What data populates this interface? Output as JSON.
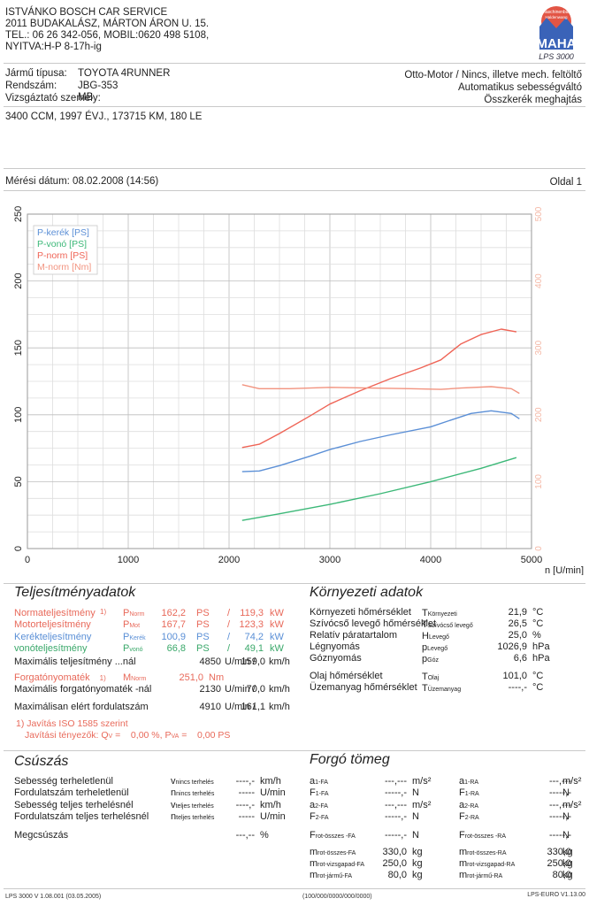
{
  "header": {
    "line1": "ISTVÁNKO BOSCH CAR SERVICE",
    "line2": "2011 BUDAKALÁSZ, MÁRTON ÁRON U. 15.",
    "line3": "TEL.: 06 26 342-056, MOBIL:0620 498 5108,",
    "line4": "NYITVA:H-P 8-17h-ig"
  },
  "logo": {
    "badge_top": "Maschinenbau",
    "badge_bottom": "Haldenwang",
    "brand": "MAHA",
    "model": "LPS 3000"
  },
  "vehicle": {
    "type_label": "Jármű típusa:",
    "type_value": "TOYOTA  4RUNNER",
    "plate_label": "Rendszám:",
    "plate_value": "JBG-353",
    "examiner_label": "Vizsgáztató személy:",
    "examiner_value": "MB",
    "engine_type": "Otto-Motor / Nincs, illetve mech. feltöltő",
    "gearbox": "Automatikus sebességváltó",
    "drive": "Összkerék meghajtás",
    "specs": "3400 CCM, 1997 ÉVJ., 173715 KM, 180 LE"
  },
  "measurement": {
    "date": "Mérési dátum: 08.02.2008 (14:56)",
    "page": "Oldal 1"
  },
  "chart_data": {
    "type": "line",
    "x_label": "n [U/min]",
    "x_ticks": [
      "0",
      "1000",
      "2000",
      "3000",
      "4000",
      "5000"
    ],
    "xlim": [
      0,
      5000
    ],
    "y_ticks_left": [
      "0",
      "50",
      "100",
      "150",
      "200",
      "250"
    ],
    "ylim_left": [
      0,
      250
    ],
    "y_ticks_right": [
      "0",
      "100",
      "200",
      "300",
      "400",
      "500"
    ],
    "ylim_right": [
      0,
      500
    ],
    "legend_position": "top-left",
    "legend": [
      "P-kerék [PS]",
      "P-vonó [PS]",
      "P-norm [PS]",
      "M-norm [Nm]"
    ],
    "series": [
      {
        "name": "P-kerék [PS]",
        "color": "#5b8fd6",
        "axis": "left",
        "x": [
          2130,
          2300,
          2500,
          2800,
          3000,
          3300,
          3600,
          4000,
          4200,
          4400,
          4600,
          4800,
          4880
        ],
        "y": [
          57.5,
          58,
          62,
          69,
          74,
          80,
          85,
          91,
          96,
          101,
          103,
          101,
          97
        ]
      },
      {
        "name": "P-vonó [PS]",
        "color": "#3cb878",
        "axis": "left",
        "x": [
          2130,
          2500,
          3000,
          3500,
          4000,
          4500,
          4850
        ],
        "y": [
          21,
          26,
          33,
          41,
          50,
          60,
          68
        ]
      },
      {
        "name": "P-norm [PS]",
        "color": "#ef6456",
        "axis": "left",
        "x": [
          2130,
          2300,
          2500,
          2800,
          3000,
          3300,
          3600,
          3900,
          4100,
          4300,
          4500,
          4700,
          4850
        ],
        "y": [
          75.5,
          78,
          86,
          99,
          108,
          118,
          127,
          135,
          141,
          153,
          160,
          164,
          162
        ]
      },
      {
        "name": "M-norm [Nm]",
        "color": "#f2937f",
        "axis": "right",
        "x": [
          2130,
          2300,
          2600,
          3000,
          3400,
          3800,
          4100,
          4300,
          4600,
          4800,
          4880
        ],
        "y": [
          245,
          239,
          239,
          241,
          240,
          239,
          238,
          240,
          242,
          239,
          232
        ]
      }
    ]
  },
  "perf": {
    "title": "Teljesítményadatok",
    "rows": [
      {
        "label": "Normateljesítmény",
        "sup": "1)",
        "sym": "P",
        "sub": "Norm",
        "v1": "162,2",
        "u1": "PS",
        "sep": "/",
        "v2": "119,3",
        "u2": "kW"
      },
      {
        "label": "Motorteljesítmény",
        "sup": "",
        "sym": "P",
        "sub": "Mot",
        "v1": "167,7",
        "u1": "PS",
        "sep": "/",
        "v2": "123,3",
        "u2": "kW"
      },
      {
        "label": "Kerékteljesítmény",
        "sup": "",
        "sym": "P",
        "sub": "Kerék",
        "v1": "100,9",
        "u1": "PS",
        "sep": "/",
        "v2": "74,2",
        "u2": "kW"
      },
      {
        "label": "vonóteljesítmény",
        "sup": "",
        "sym": "P",
        "sub": "vonó",
        "v1": "66,8",
        "u1": "PS",
        "sep": "/",
        "v2": "49,1",
        "u2": "kW"
      }
    ],
    "max_power_label": "Maximális teljesítmény ...nál",
    "max_power_rpm": "4850",
    "max_power_rpm_unit": "U/min /",
    "max_power_speed": "159,0",
    "max_power_speed_unit": "km/h",
    "torque_label": "Forgatónyomaték",
    "torque_sup": "1)",
    "torque_sym": "M",
    "torque_sub": "Norm",
    "torque_value": "251,0",
    "torque_unit": "Nm",
    "max_torque_label": "Maximális forgatónyomaték -nál",
    "max_torque_rpm": "2130",
    "max_torque_rpm_unit": "U/min /",
    "max_torque_speed": "70,0",
    "max_torque_speed_unit": "km/h",
    "max_rev_label": "Maximálisan elért fordulatszám",
    "max_rev_rpm": "4910",
    "max_rev_rpm_unit": "U/min /",
    "max_rev_speed": "161,1",
    "max_rev_speed_unit": "km/h",
    "note1": "1) Javítás ISO 1585 szerint",
    "note2": "Javítási tényezők: Q",
    "note2_sub": "V",
    "note2_mid": " =    0,00 %, P",
    "note2_sub2": "VA",
    "note2_end": " =    0,00 PS"
  },
  "env": {
    "title": "Környezeti adatok",
    "rows": [
      {
        "label": "Környezeti hőmérséklet",
        "sym": "T",
        "sub": "Környezeti",
        "value": "21,9",
        "unit": "°C"
      },
      {
        "label": "Szívócső levegő hőmérséklet",
        "sym": "T",
        "sub": "Szívócső levegő",
        "value": "26,5",
        "unit": "°C"
      },
      {
        "label": "Relatív páratartalom",
        "sym": "H",
        "sub": "Levegő",
        "value": "25,0",
        "unit": "%"
      },
      {
        "label": "Légnyomás",
        "sym": "p",
        "sub": "Levegő",
        "value": "1026,9",
        "unit": "hPa"
      },
      {
        "label": "Góznyomás",
        "sym": "p",
        "sub": "Góz",
        "value": "6,6",
        "unit": "hPa"
      },
      {
        "label": "Olaj hőmérséklet",
        "sym": "T",
        "sub": "Olaj",
        "value": "101,0",
        "unit": "°C"
      },
      {
        "label": "Üzemanyag hőmérséklet",
        "sym": "T",
        "sub": "Üzemanyag",
        "value": "----,-",
        "unit": "°C"
      }
    ]
  },
  "slip": {
    "title": "Csúszás",
    "rows": [
      {
        "label": "Sebesség terheletlenül",
        "sym": "v",
        "sub": "nincs terhelés",
        "value": "----,-",
        "unit": "km/h"
      },
      {
        "label": "Fordulatszám terheletlenül",
        "sym": "n",
        "sub": "nincs terhelés",
        "value": "-----",
        "unit": "U/min"
      },
      {
        "label": "Sebesség teljes terhelésnél",
        "sym": "v",
        "sub": "teljes terhelés",
        "value": "----,-",
        "unit": "km/h"
      },
      {
        "label": "Fordulatszám teljes terhelésnél",
        "sym": "n",
        "sub": "teljes terhelés",
        "value": "-----",
        "unit": "U/min"
      },
      {
        "label": "Megcsúszás",
        "sym": "",
        "sub": "",
        "value": "---,--",
        "unit": "%"
      }
    ]
  },
  "mass": {
    "title": "Forgó tömeg",
    "left": [
      {
        "sym": "a",
        "sub": "1-FA",
        "value": "---,---",
        "unit": "m/s²"
      },
      {
        "sym": "F",
        "sub": "1-FA",
        "value": "-----,-",
        "unit": "N"
      },
      {
        "sym": "a",
        "sub": "2-FA",
        "value": "---,---",
        "unit": "m/s²"
      },
      {
        "sym": "F",
        "sub": "2-FA",
        "value": "-----,-",
        "unit": "N"
      },
      {
        "sym": "F",
        "sub": "rot-összes -FA",
        "value": "-----,-",
        "unit": "N"
      },
      {
        "sym": "m",
        "sub": "rot-összes-FA",
        "value": "330,0",
        "unit": "kg"
      },
      {
        "sym": "m",
        "sub": "rot-vizsgapad-FA",
        "value": "250,0",
        "unit": "kg"
      },
      {
        "sym": "m",
        "sub": "rot-jármű-FA",
        "value": "80,0",
        "unit": "kg"
      }
    ],
    "right": [
      {
        "sym": "a",
        "sub": "1-RA",
        "value": "---,---",
        "unit": "m/s²"
      },
      {
        "sym": "F",
        "sub": "1-RA",
        "value": "-----,-",
        "unit": "N"
      },
      {
        "sym": "a",
        "sub": "2-RA",
        "value": "---,---",
        "unit": "m/s²"
      },
      {
        "sym": "F",
        "sub": "2-RA",
        "value": "-----,-",
        "unit": "N"
      },
      {
        "sym": "F",
        "sub": "rot-összes -RA",
        "value": "-----,-",
        "unit": "N"
      },
      {
        "sym": "m",
        "sub": "rot-összes-RA",
        "value": "330,0",
        "unit": "kg"
      },
      {
        "sym": "m",
        "sub": "rot-vizsgapad-RA",
        "value": "250,0",
        "unit": "kg"
      },
      {
        "sym": "m",
        "sub": "rot-jármű-RA",
        "value": "80,0",
        "unit": "kg"
      }
    ]
  },
  "footer": {
    "left": "LPS 3000 V 1.08.001 (03.05.2005)",
    "center": "(100/000/0000/000/0000)",
    "right": "LPS-EURO V1.13.00"
  },
  "colors": {
    "accent": "#e8695a",
    "blue": "#5b8fd6",
    "green": "#3cb878",
    "logo_blue": "#3a63b8",
    "logo_red": "#e04a4a"
  }
}
